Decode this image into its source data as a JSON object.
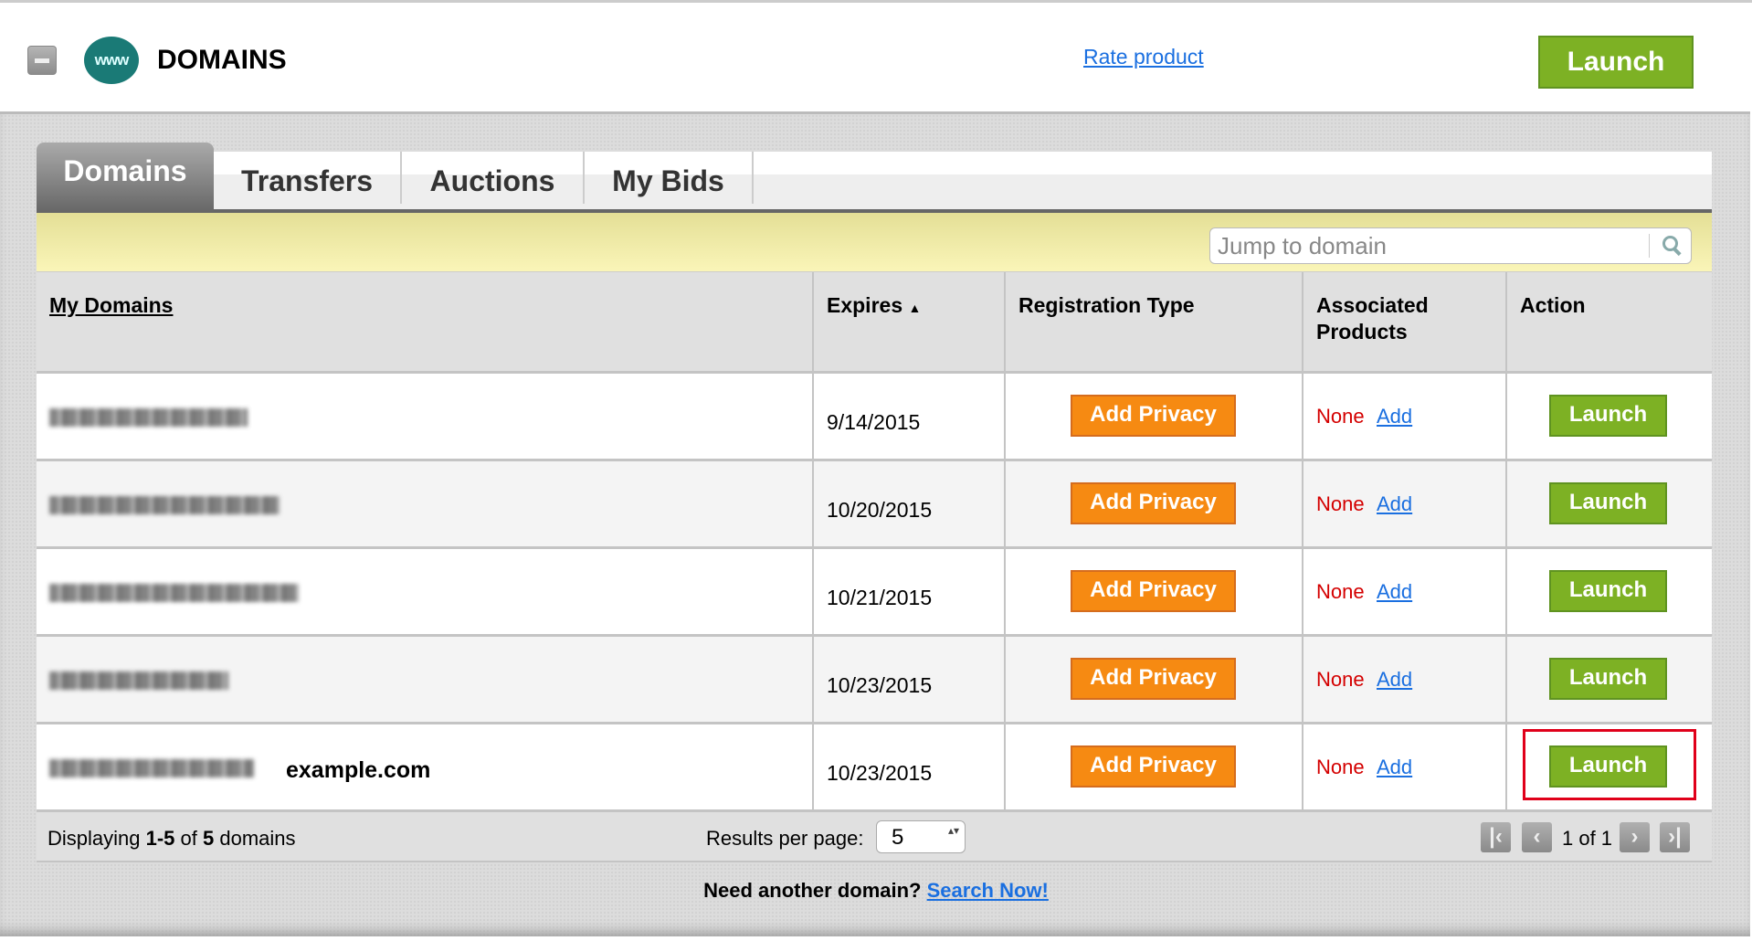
{
  "header": {
    "title": "DOMAINS",
    "logo_text": "www",
    "rate_link": "Rate product",
    "launch_label": "Launch"
  },
  "tabs": [
    {
      "label": "Domains",
      "active": true
    },
    {
      "label": "Transfers"
    },
    {
      "label": "Auctions"
    },
    {
      "label": "My Bids"
    }
  ],
  "search": {
    "placeholder": "Jump to domain"
  },
  "table": {
    "headers": {
      "domain": "My Domains",
      "expires": "Expires",
      "sort_arrow": "▲",
      "reg_type": "Registration Type",
      "assoc": "Associated Products",
      "action": "Action"
    },
    "rows": [
      {
        "extra_label": "",
        "expires": "9/14/2015",
        "privacy": "Add Privacy",
        "assoc": "None",
        "add": "Add",
        "action": "Launch"
      },
      {
        "extra_label": "",
        "expires": "10/20/2015",
        "privacy": "Add Privacy",
        "assoc": "None",
        "add": "Add",
        "action": "Launch"
      },
      {
        "extra_label": "",
        "expires": "10/21/2015",
        "privacy": "Add Privacy",
        "assoc": "None",
        "add": "Add",
        "action": "Launch"
      },
      {
        "extra_label": "",
        "expires": "10/23/2015",
        "privacy": "Add Privacy",
        "assoc": "None",
        "add": "Add",
        "action": "Launch"
      },
      {
        "extra_label": "example.com",
        "expires": "10/23/2015",
        "privacy": "Add Privacy",
        "assoc": "None",
        "add": "Add",
        "action": "Launch",
        "highlighted": true
      }
    ]
  },
  "footer": {
    "displaying_prefix": "Displaying ",
    "range": "1-5",
    "of": " of ",
    "total": "5",
    "suffix": " domains",
    "results_label": "Results per page:",
    "results_value": "5",
    "page_text": "1 of 1"
  },
  "bottom": {
    "question": "Need another domain? ",
    "link": "Search Now!"
  },
  "colors": {
    "launch_green": "#7db124",
    "privacy_orange": "#f68a12",
    "none_red": "#d40000",
    "link_blue": "#1a6fe0",
    "highlight_red": "#e0001a"
  }
}
